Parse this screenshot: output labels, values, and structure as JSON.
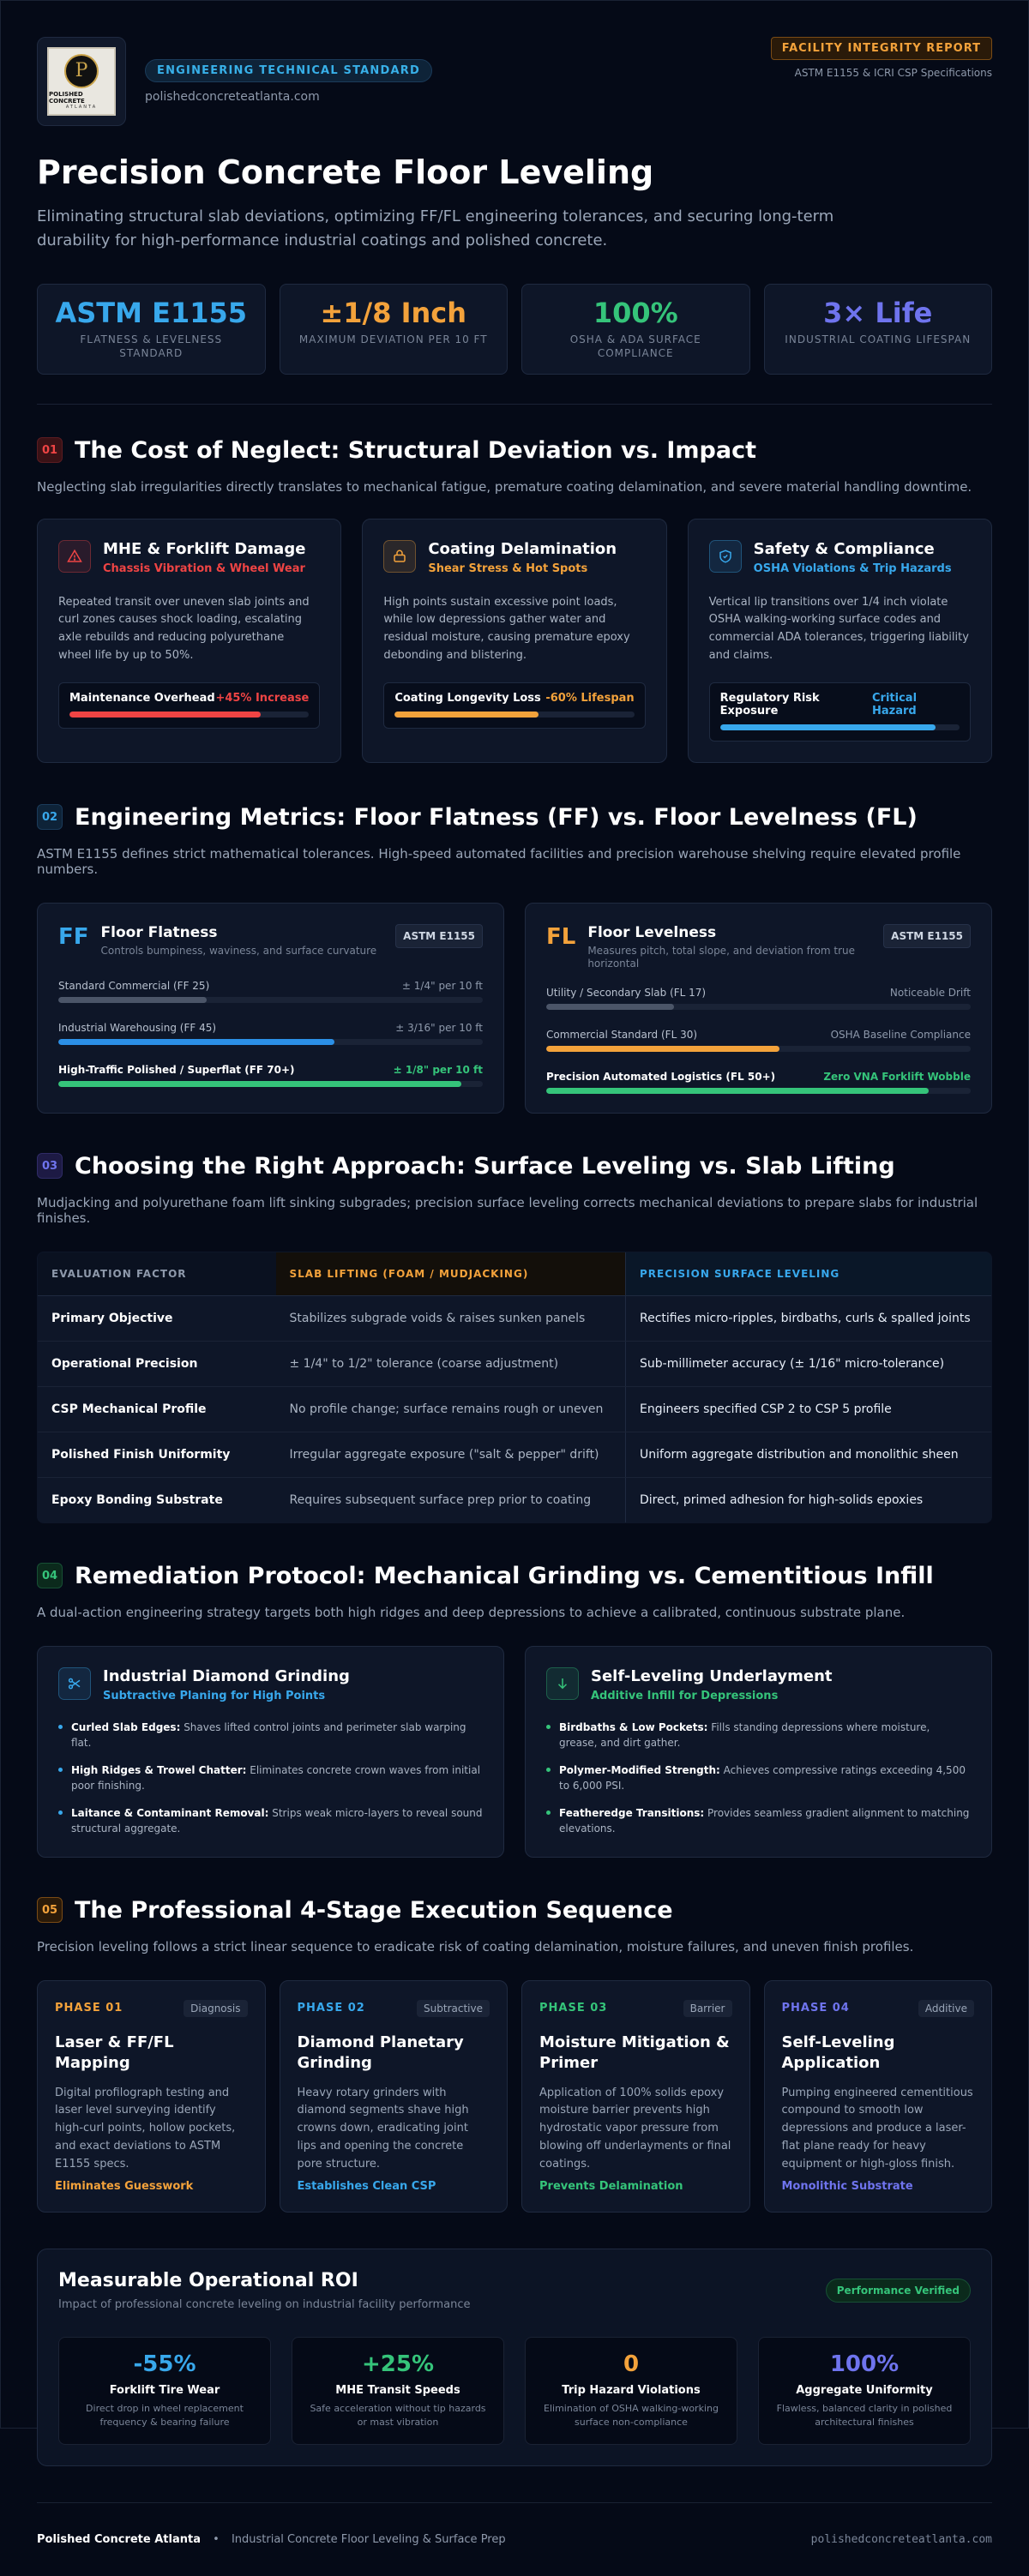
{
  "header": {
    "logo_text": "POLISHED CONCRETE",
    "logo_sub": "ATLANTA",
    "badge": "ENGINEERING TECHNICAL STANDARD",
    "domain": "polishedconcreteatlanta.com",
    "report_badge": "FACILITY INTEGRITY REPORT",
    "report_sub": "ASTM E1155 & ICRI CSP Specifications"
  },
  "hero": {
    "title": "Precision Concrete Floor Leveling",
    "lead": "Eliminating structural slab deviations, optimizing FF/FL engineering tolerances, and securing long-term durability for high-performance industrial coatings and polished concrete."
  },
  "stats": [
    {
      "value": "ASTM E1155",
      "label": "FLATNESS & LEVELNESS STANDARD",
      "color": "#38a8ec"
    },
    {
      "value": "±1/8 Inch",
      "label": "MAXIMUM DEVIATION PER 10 FT",
      "color": "#f3a23b"
    },
    {
      "value": "100%",
      "label": "OSHA & ADA SURFACE COMPLIANCE",
      "color": "#35c47a"
    },
    {
      "value": "3× Life",
      "label": "INDUSTRIAL COATING LIFESPAN",
      "color": "#6f74ee"
    }
  ],
  "s1": {
    "num": "01",
    "title": "The Cost of Neglect: Structural Deviation vs. Impact",
    "desc": "Neglecting slab irregularities directly translates to mechanical fatigue, premature coating delamination, and severe material handling downtime.",
    "cards": [
      {
        "title": "MHE & Forklift Damage",
        "sub": "Chassis Vibration & Wheel Wear",
        "body": "Repeated transit over uneven slab joints and curl zones causes shock loading, escalating axle rebuilds and reducing polyurethane wheel life by up to 50%.",
        "meter_label": "Maintenance Overhead",
        "meter_value": "+45% Increase",
        "level": 0.8,
        "color": "#ef4444",
        "icon": "warning-icon"
      },
      {
        "title": "Coating Delamination",
        "sub": "Shear Stress & Hot Spots",
        "body": "High points sustain excessive point loads, while low depressions gather water and residual moisture, causing premature epoxy debonding and blistering.",
        "meter_label": "Coating Longevity Loss",
        "meter_value": "-60% Lifespan",
        "level": 0.6,
        "color": "#f3a23b",
        "icon": "layers-icon"
      },
      {
        "title": "Safety & Compliance",
        "sub": "OSHA Violations & Trip Hazards",
        "body": "Vertical lip transitions over 1/4 inch violate OSHA walking-working surface codes and commercial ADA tolerances, triggering liability and claims.",
        "meter_label": "Regulatory Risk Exposure",
        "meter_value": "Critical Hazard",
        "level": 0.9,
        "color": "#38a8ec",
        "icon": "shield-icon"
      }
    ]
  },
  "s2": {
    "num": "02",
    "title": "Engineering Metrics: Floor Flatness (FF) vs. Floor Levelness (FL)",
    "desc": "ASTM E1155 defines strict mathematical tolerances. High-speed automated facilities and precision warehouse shelving require elevated profile numbers.",
    "ff": {
      "abbr": "FF",
      "title": "Floor Flatness",
      "sub": "Controls bumpiness, waviness, and surface curvature",
      "tag": "ASTM E1155",
      "rows": [
        {
          "label": "Standard Commercial (FF 25)",
          "value": "± 1/4\" per 10 ft",
          "level": 0.35,
          "color": "#4b5568"
        },
        {
          "label": "Industrial Warehousing (FF 45)",
          "value": "± 3/16\" per 10 ft",
          "level": 0.65,
          "color": "#2b8fe6"
        },
        {
          "label": "High-Traffic Polished / Superflat (FF 70+)",
          "value": "± 1/8\" per 10 ft",
          "level": 0.95,
          "color": "#35c47a"
        }
      ]
    },
    "fl": {
      "abbr": "FL",
      "title": "Floor Levelness",
      "sub": "Measures pitch, total slope, and deviation from true horizontal",
      "tag": "ASTM E1155",
      "rows": [
        {
          "label": "Utility / Secondary Slab (FL 17)",
          "value": "Noticeable Drift",
          "level": 0.3,
          "color": "#4b5568"
        },
        {
          "label": "Commercial Standard (FL 30)",
          "value": "OSHA Baseline Compliance",
          "level": 0.55,
          "color": "#f3a23b"
        },
        {
          "label": "Precision Automated Logistics (FL 50+)",
          "value": "Zero VNA Forklift Wobble",
          "level": 0.9,
          "color": "#35c47a"
        }
      ]
    }
  },
  "s3": {
    "num": "03",
    "title": "Choosing the Right Approach: Surface Leveling vs. Slab Lifting",
    "desc": "Mudjacking and polyurethane foam lift sinking subgrades; precision surface leveling corrects mechanical deviations to prepare slabs for industrial finishes.",
    "headers": [
      "EVALUATION FACTOR",
      "SLAB LIFTING (FOAM / MUDJACKING)",
      "PRECISION SURFACE LEVELING"
    ],
    "rows": [
      [
        "Primary Objective",
        "Stabilizes subgrade voids & raises sunken panels",
        "Rectifies micro-ripples, birdbaths, curls & spalled joints"
      ],
      [
        "Operational Precision",
        "± 1/4\" to 1/2\" tolerance (coarse adjustment)",
        "Sub-millimeter accuracy (± 1/16\" micro-tolerance)"
      ],
      [
        "CSP Mechanical Profile",
        "No profile change; surface remains rough or uneven",
        "Engineers specified CSP 2 to CSP 5 profile"
      ],
      [
        "Polished Finish Uniformity",
        "Irregular aggregate exposure (\"salt & pepper\" drift)",
        "Uniform aggregate distribution and monolithic sheen"
      ],
      [
        "Epoxy Bonding Substrate",
        "Requires subsequent surface prep prior to coating",
        "Direct, primed adhesion for high-solids epoxies"
      ]
    ]
  },
  "s4": {
    "num": "04",
    "title": "Remediation Protocol: Mechanical Grinding vs. Cementitious Infill",
    "desc": "A dual-action engineering strategy targets both high ridges and deep depressions to achieve a calibrated, continuous substrate plane.",
    "cards": [
      {
        "title": "Industrial Diamond Grinding",
        "sub": "Subtractive Planing for High Points",
        "color": "#38a8ec",
        "icon": "scissors-icon",
        "items": [
          {
            "b": "Curled Slab Edges:",
            "t": " Shaves lifted control joints and perimeter slab warping flat."
          },
          {
            "b": "High Ridges & Trowel Chatter:",
            "t": " Eliminates concrete crown waves from initial poor finishing."
          },
          {
            "b": "Laitance & Contaminant Removal:",
            "t": " Strips weak micro-layers to reveal sound structural aggregate."
          }
        ]
      },
      {
        "title": "Self-Leveling Underlayment",
        "sub": "Additive Infill for Depressions",
        "color": "#35c47a",
        "icon": "arrow-down-icon",
        "items": [
          {
            "b": "Birdbaths & Low Pockets:",
            "t": " Fills standing depressions where moisture, grease, and dirt gather."
          },
          {
            "b": "Polymer-Modified Strength:",
            "t": " Achieves compressive ratings exceeding 4,500 to 6,000 PSI."
          },
          {
            "b": "Featheredge Transitions:",
            "t": " Provides seamless gradient alignment to matching elevations."
          }
        ]
      }
    ]
  },
  "s5": {
    "num": "05",
    "title": "The Professional 4-Stage Execution Sequence",
    "desc": "Precision leveling follows a strict linear sequence to eradicate risk of coating delamination, moisture failures, and uneven finish profiles.",
    "phases": [
      {
        "n": "PHASE 01",
        "tag": "Diagnosis",
        "title": "Laser & FF/FL Mapping",
        "body": "Digital profilograph testing and laser level surveying identify high-curl points, hollow pockets, and exact deviations to ASTM E1155 specs.",
        "foot": "Eliminates Guesswork",
        "color": "#f3a23b"
      },
      {
        "n": "PHASE 02",
        "tag": "Subtractive",
        "title": "Diamond Planetary Grinding",
        "body": "Heavy rotary grinders with diamond segments shave high crowns down, eradicating joint lips and opening the concrete pore structure.",
        "foot": "Establishes Clean CSP",
        "color": "#38a8ec"
      },
      {
        "n": "PHASE 03",
        "tag": "Barrier",
        "title": "Moisture Mitigation & Primer",
        "body": "Application of 100% solids epoxy moisture barrier prevents high hydrostatic vapor pressure from blowing off underlayments or final coatings.",
        "foot": "Prevents Delamination",
        "color": "#35c47a"
      },
      {
        "n": "PHASE 04",
        "tag": "Additive",
        "title": "Self-Leveling Application",
        "body": "Pumping engineered cementitious compound to smooth low depressions and produce a laser-flat plane ready for heavy equipment or high-gloss finish.",
        "foot": "Monolithic Substrate",
        "color": "#6f74ee"
      }
    ]
  },
  "roi": {
    "title": "Measurable Operational ROI",
    "sub": "Impact of professional concrete leveling on industrial facility performance",
    "badge": "Performance Verified",
    "items": [
      {
        "v": "-55%",
        "l": "Forklift Tire Wear",
        "d": "Direct drop in wheel replacement frequency & bearing failure",
        "color": "#38a8ec"
      },
      {
        "v": "+25%",
        "l": "MHE Transit Speeds",
        "d": "Safe acceleration without tip hazards or mast vibration",
        "color": "#35c47a"
      },
      {
        "v": "0",
        "l": "Trip Hazard Violations",
        "d": "Elimination of OSHA walking-working surface non-compliance",
        "color": "#f3a23b"
      },
      {
        "v": "100%",
        "l": "Aggregate Uniformity",
        "d": "Flawless, balanced clarity in polished architectural finishes",
        "color": "#6f74ee"
      }
    ]
  },
  "footer": {
    "brand": "Polished Concrete Atlanta",
    "sep": "•",
    "desc": "Industrial Concrete Floor Leveling & Surface Prep",
    "domain": "polishedconcreteatlanta.com"
  }
}
